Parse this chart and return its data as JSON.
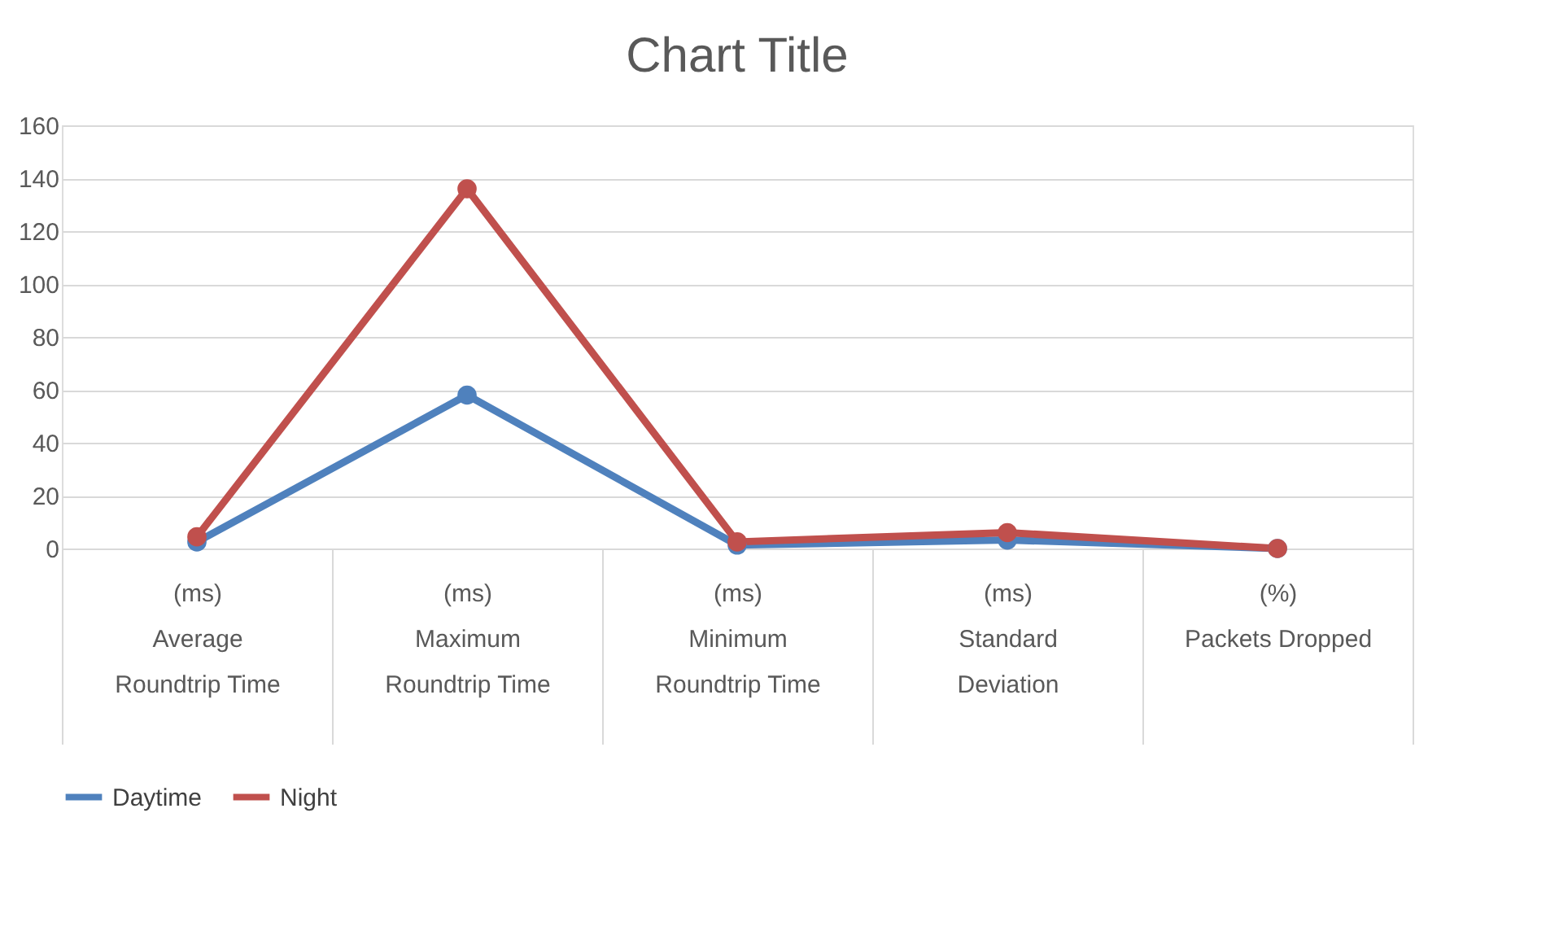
{
  "chart_data": {
    "type": "line",
    "title": "Chart Title",
    "categories": [
      "(ms)\nAverage\nRoundtrip Time",
      "(ms)\nMaximum\nRoundtrip Time",
      "(ms)\nMinimum\nRoundtrip Time",
      "(ms)\nStandard\nDeviation",
      "(%)\nPackets Dropped"
    ],
    "series": [
      {
        "name": "Daytime",
        "color": "#4f81bd",
        "values": [
          2.5,
          58,
          1.3,
          3.2,
          0
        ]
      },
      {
        "name": "Night",
        "color": "#c0504d",
        "values": [
          4.4,
          136,
          2.5,
          6,
          0
        ]
      }
    ],
    "ylim": [
      0,
      160
    ],
    "yticks": [
      0,
      20,
      40,
      60,
      80,
      100,
      120,
      140,
      160
    ],
    "grid": "y",
    "legend": "bottom",
    "marker": "circle",
    "line_style": "solid"
  }
}
